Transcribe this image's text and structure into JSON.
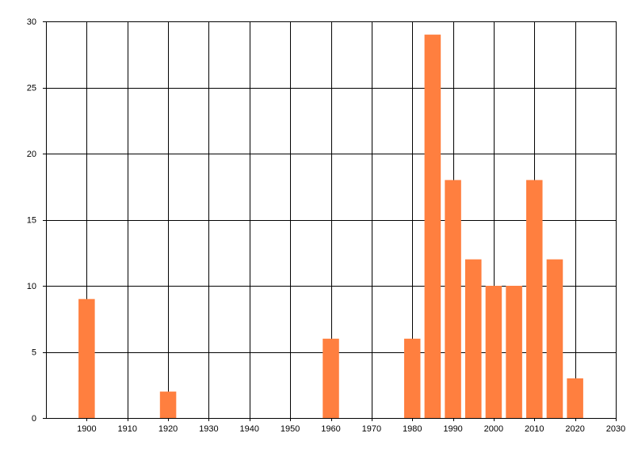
{
  "chart_data": {
    "type": "bar",
    "title": "",
    "xlabel": "",
    "ylabel": "",
    "xlim": [
      1890,
      2030
    ],
    "ylim": [
      0,
      30
    ],
    "x_ticks": [
      1900,
      1910,
      1920,
      1930,
      1940,
      1950,
      1960,
      1970,
      1980,
      1990,
      2000,
      2010,
      2020,
      2030
    ],
    "y_ticks": [
      0,
      5,
      10,
      15,
      20,
      25,
      30
    ],
    "bar_color": "#FF7F3F",
    "grid": true,
    "legend": "none",
    "series": [
      {
        "points": [
          {
            "x": 1900,
            "y": 9
          },
          {
            "x": 1920,
            "y": 2
          },
          {
            "x": 1960,
            "y": 6
          },
          {
            "x": 1980,
            "y": 6
          },
          {
            "x": 1985,
            "y": 29
          },
          {
            "x": 1990,
            "y": 18
          },
          {
            "x": 1995,
            "y": 12
          },
          {
            "x": 2000,
            "y": 10
          },
          {
            "x": 2005,
            "y": 10
          },
          {
            "x": 2010,
            "y": 18
          },
          {
            "x": 2015,
            "y": 12
          },
          {
            "x": 2020,
            "y": 3
          }
        ]
      }
    ]
  }
}
